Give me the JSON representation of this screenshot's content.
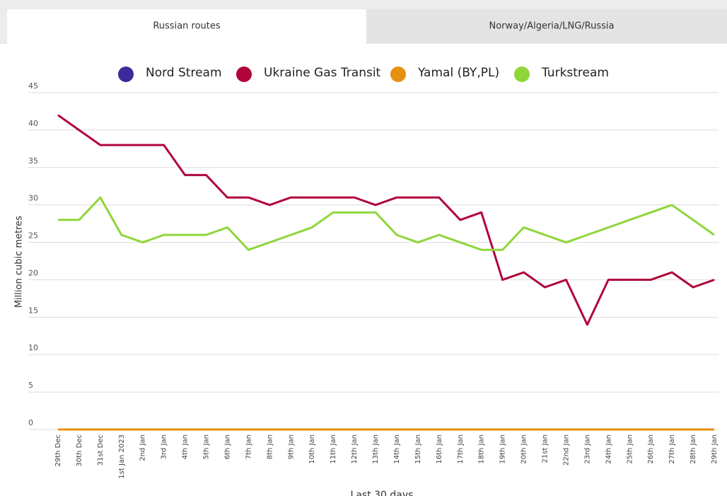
{
  "tabs": [
    "Russian routes",
    "Norway/Algeria/LNG/Russia"
  ],
  "chart_data": {
    "type": "line",
    "x_label": "Last 30 days",
    "y_label": "Million cubic metres",
    "categories": [
      "29th Dec",
      "30th Dec",
      "31st Dec",
      "1st Jan 2023",
      "2nd Jan",
      "3rd Jan",
      "4th Jan",
      "5th Jan",
      "6th Jan",
      "7th Jan",
      "8th Jan",
      "9th Jan",
      "10th Jan",
      "11th Jan",
      "12th Jan",
      "13th Jan",
      "14th Jan",
      "15th Jan",
      "16th Jan",
      "17th Jan",
      "18th Jan",
      "19th Jan",
      "20th Jan",
      "21st Jan",
      "22nd Jan",
      "23rd Jan",
      "24th Jan",
      "25th Jan",
      "26th Jan",
      "27th Jan",
      "28th Jan",
      "29th Jan"
    ],
    "series": [
      {
        "name": "Nord Stream",
        "color": "#3b2a9c",
        "values": [
          0,
          0,
          0,
          0,
          0,
          0,
          0,
          0,
          0,
          0,
          0,
          0,
          0,
          0,
          0,
          0,
          0,
          0,
          0,
          0,
          0,
          0,
          0,
          0,
          0,
          0,
          0,
          0,
          0,
          0,
          0,
          0
        ]
      },
      {
        "name": "Ukraine Gas Transit",
        "color": "#b0063a",
        "values": [
          42,
          40,
          38,
          38,
          38,
          38,
          34,
          34,
          31,
          31,
          30,
          31,
          31,
          31,
          31,
          30,
          31,
          31,
          31,
          28,
          29,
          20,
          21,
          19,
          20,
          14,
          20,
          20,
          20,
          21,
          19,
          20
        ]
      },
      {
        "name": "Yamal (BY,PL)",
        "color": "#e8900f",
        "values": [
          0,
          0,
          0,
          0,
          0,
          0,
          0,
          0,
          0,
          0,
          0,
          0,
          0,
          0,
          0,
          0,
          0,
          0,
          0,
          0,
          0,
          0,
          0,
          0,
          0,
          0,
          0,
          0,
          0,
          0,
          0,
          0
        ]
      },
      {
        "name": "Turkstream",
        "color": "#8fd63a",
        "values": [
          28,
          28,
          31,
          26,
          25,
          26,
          26,
          26,
          27,
          24,
          25,
          26,
          27,
          29,
          29,
          29,
          26,
          25,
          26,
          25,
          24,
          24,
          27,
          26,
          25,
          26,
          27,
          28,
          29,
          30,
          28,
          26
        ]
      }
    ],
    "ylim": [
      0,
      45
    ],
    "yticks": [
      0,
      5,
      10,
      15,
      20,
      25,
      30,
      35,
      40,
      45
    ],
    "grid": true,
    "legend": "top"
  }
}
